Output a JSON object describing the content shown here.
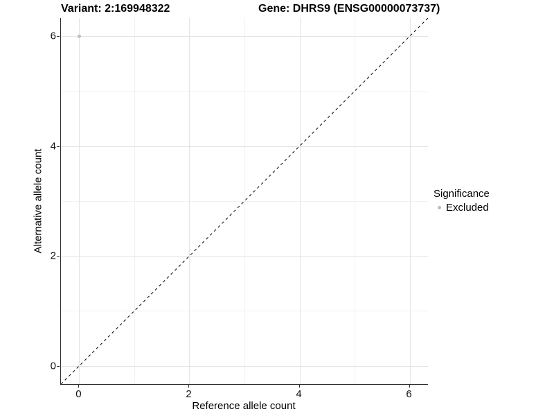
{
  "title": {
    "variant": "Variant: 2:169948322",
    "gene": "Gene: DHRS9 (ENSG00000073737)"
  },
  "legend": {
    "title": "Significance",
    "items": [
      {
        "label": "Excluded",
        "marker": "dot",
        "color": "#bdbdbd"
      }
    ]
  },
  "chart_data": {
    "type": "scatter",
    "title": "Variant: 2:169948322 | Gene: DHRS9 (ENSG00000073737)",
    "xlabel": "Reference allele count",
    "ylabel": "Alternative allele count",
    "xlim": [
      -0.333,
      6.333
    ],
    "ylim": [
      -0.333,
      6.333
    ],
    "x_ticks": [
      0,
      2,
      4,
      6
    ],
    "y_ticks": [
      0,
      2,
      4,
      6
    ],
    "x_minor_ticks": [
      1,
      3,
      5
    ],
    "y_minor_ticks": [
      1,
      3,
      5
    ],
    "grid": "major+minor",
    "legend_position": "right",
    "series": [
      {
        "name": "Excluded",
        "color": "#bdbdbd",
        "points": [
          {
            "x": 0,
            "y": 6
          }
        ]
      }
    ],
    "reference_line": {
      "slope": 1,
      "intercept": 0,
      "linetype": "dashed",
      "color": "#000000"
    }
  },
  "colors": {
    "background": "#ffffff",
    "grid_major": "#e4e4e4",
    "grid_minor": "#f1f1f1",
    "axis_line": "#2e2e2e",
    "text": "#000000",
    "excluded_point": "#bdbdbd"
  }
}
